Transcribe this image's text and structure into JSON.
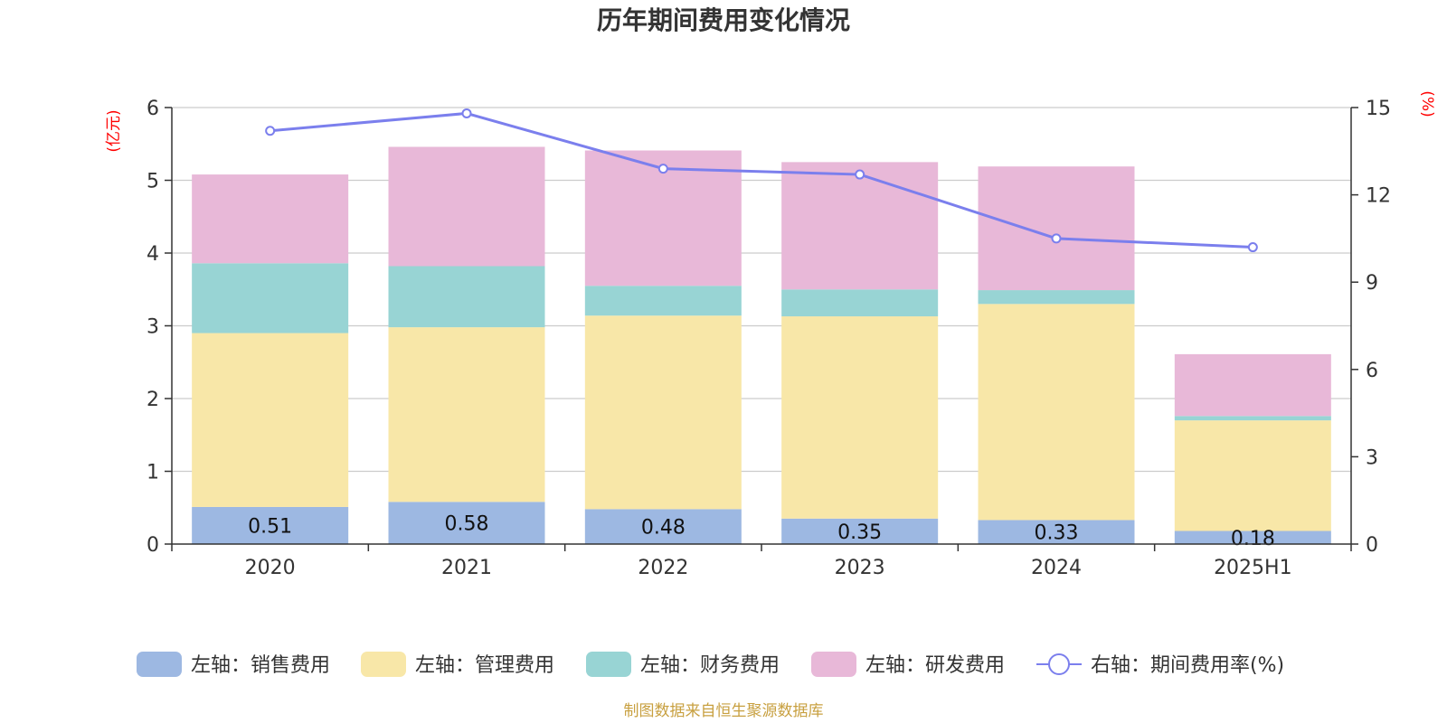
{
  "chart_data": {
    "type": "bar",
    "stacked": true,
    "title": "历年期间费用变化情况",
    "categories": [
      "2020",
      "2021",
      "2022",
      "2023",
      "2024",
      "2025H1"
    ],
    "left_axis": {
      "unit": "(亿元)",
      "ylim": [
        0,
        6
      ],
      "ticks": [
        0,
        1,
        2,
        3,
        4,
        5,
        6
      ]
    },
    "right_axis": {
      "unit": "(%)",
      "ylim": [
        0,
        15
      ],
      "ticks": [
        0,
        3,
        6,
        9,
        12,
        15
      ]
    },
    "series": [
      {
        "name": "左轴：销售费用",
        "axis": "left",
        "color": "#9db8e2",
        "values": [
          0.51,
          0.58,
          0.48,
          0.35,
          0.33,
          0.18
        ],
        "labels": [
          "0.51",
          "0.58",
          "0.48",
          "0.35",
          "0.33",
          "0.18"
        ]
      },
      {
        "name": "左轴：管理费用",
        "axis": "left",
        "color": "#f8e7a8",
        "values": [
          2.39,
          2.4,
          2.66,
          2.78,
          2.97,
          1.52
        ]
      },
      {
        "name": "左轴：财务费用",
        "axis": "left",
        "color": "#98d4d4",
        "values": [
          0.96,
          0.84,
          0.41,
          0.37,
          0.19,
          0.06
        ]
      },
      {
        "name": "左轴：研发费用",
        "axis": "left",
        "color": "#e8b8d8",
        "values": [
          1.22,
          1.64,
          1.86,
          1.75,
          1.7,
          0.85
        ]
      }
    ],
    "line_series": {
      "name": "右轴：期间费用率(%)",
      "axis": "right",
      "color": "#7b7fed",
      "values": [
        14.2,
        14.8,
        12.9,
        12.7,
        10.5,
        10.2
      ]
    },
    "grid": true,
    "legend_position": "bottom"
  },
  "source_text": "制图数据来自恒生聚源数据库"
}
